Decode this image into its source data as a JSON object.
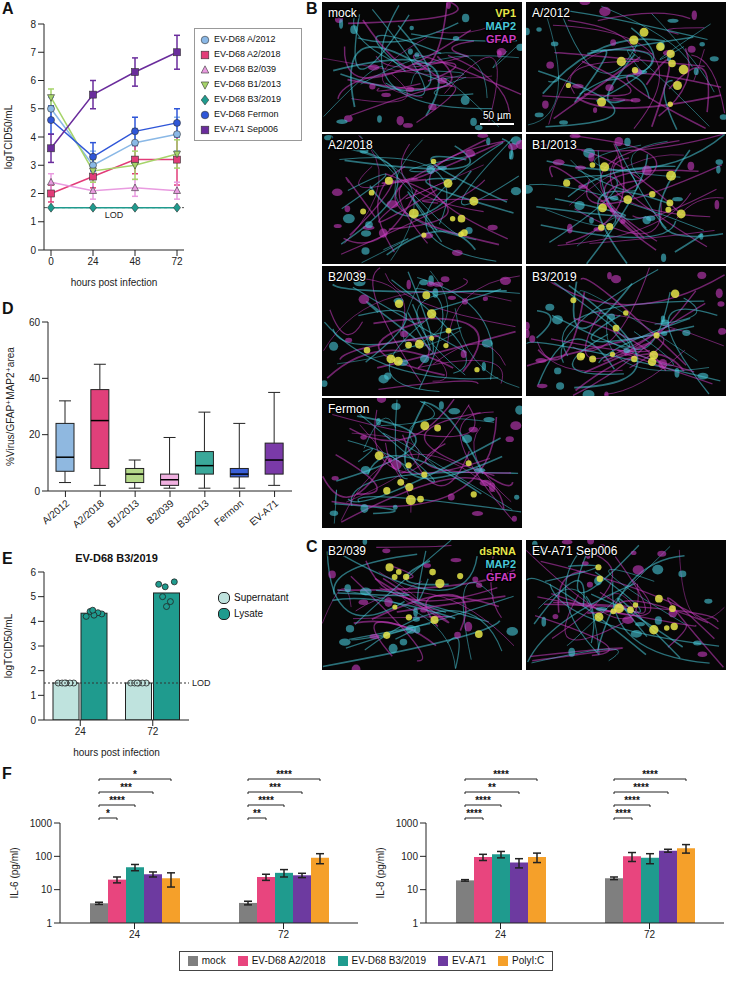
{
  "chart_data": [
    {
      "panel": "A",
      "type": "line",
      "x_label": "hours post infection",
      "y_label": "logTCID50/mL",
      "legend": "right",
      "x": [
        0,
        24,
        48,
        72
      ],
      "xlim": [
        -4,
        76
      ],
      "xticks": [
        0,
        24,
        48,
        72
      ],
      "ylim": [
        0,
        8
      ],
      "yticks": [
        0,
        1,
        2,
        3,
        4,
        5,
        6,
        7,
        8
      ],
      "annotations": [
        {
          "label": "LOD",
          "y": 1.5
        }
      ],
      "series": [
        {
          "name": "EV-D68 A/2012",
          "color": "#8ab8e6",
          "marker": "circle",
          "values": [
            5.0,
            3.0,
            3.8,
            4.1
          ],
          "errors": [
            0.4,
            0.5,
            0.5,
            0.6
          ]
        },
        {
          "name": "EV-D68 A2/2018",
          "color": "#e23c78",
          "marker": "square",
          "values": [
            2.0,
            2.6,
            3.2,
            3.2
          ],
          "errors": [
            0.3,
            0.4,
            0.5,
            0.9
          ]
        },
        {
          "name": "EV-D68 B2/039",
          "color": "#e99be0",
          "marker": "triangle",
          "values": [
            2.4,
            2.1,
            2.2,
            2.1
          ],
          "errors": [
            0.3,
            0.3,
            0.3,
            0.3
          ]
        },
        {
          "name": "EV-D68 B1/2013",
          "color": "#a6d46a",
          "marker": "triangle-down",
          "values": [
            5.4,
            2.8,
            3.0,
            3.4
          ],
          "errors": [
            0.3,
            0.4,
            0.5,
            0.5
          ]
        },
        {
          "name": "EV-D68 B3/2019",
          "color": "#1f9b8e",
          "marker": "diamond",
          "values": [
            1.5,
            1.5,
            1.5,
            1.5
          ],
          "errors": [
            0,
            0,
            0,
            0
          ]
        },
        {
          "name": "EV-D68 Fermon",
          "color": "#2f56d8",
          "marker": "circle",
          "values": [
            4.6,
            3.3,
            4.2,
            4.5
          ],
          "errors": [
            0.5,
            0.5,
            0.5,
            0.5
          ]
        },
        {
          "name": "EV-A71 Sep006",
          "color": "#6a2c9c",
          "marker": "square",
          "values": [
            3.6,
            5.5,
            6.3,
            7.0
          ],
          "errors": [
            0.5,
            0.5,
            0.5,
            0.6
          ]
        }
      ]
    },
    {
      "panel": "B",
      "type": "image",
      "channels": [
        {
          "name": "VP1",
          "color": "#e6e64a"
        },
        {
          "name": "MAP2",
          "color": "#48c8d8"
        },
        {
          "name": "GFAP",
          "color": "#c83cc0"
        }
      ],
      "scale_bar": "50 µm",
      "images": [
        "mock",
        "A/2012",
        "A2/2018",
        "B1/2013",
        "B2/039",
        "B3/2019",
        "Fermon"
      ]
    },
    {
      "panel": "C",
      "type": "image",
      "channels": [
        {
          "name": "dsRNA",
          "color": "#e6e64a"
        },
        {
          "name": "MAP2",
          "color": "#48c8d8"
        },
        {
          "name": "GFAP",
          "color": "#c83cc0"
        }
      ],
      "images": [
        "B2/039",
        "EV-A71 Sep006"
      ]
    },
    {
      "panel": "D",
      "type": "box",
      "y_label": "%Virus/GFAP⁺MAP2⁺area",
      "categories": [
        "A/2012",
        "A2/2018",
        "B1/2013",
        "B2/039",
        "B3/2013",
        "Fermon",
        "EV-A71"
      ],
      "colors": [
        "#8fb8e0",
        "#e0407a",
        "#b5d98a",
        "#f0b0e0",
        "#3aa89a",
        "#3a5fd6",
        "#7a3aa8"
      ],
      "ylim": [
        0,
        60
      ],
      "yticks": [
        0,
        20,
        40,
        60
      ],
      "boxes": [
        {
          "min": 3,
          "q1": 7,
          "median": 12,
          "q3": 24,
          "max": 32
        },
        {
          "min": 2,
          "q1": 8,
          "median": 25,
          "q3": 36,
          "max": 45
        },
        {
          "min": 1,
          "q1": 3,
          "median": 6,
          "q3": 8,
          "max": 11
        },
        {
          "min": 1,
          "q1": 2,
          "median": 4,
          "q3": 6,
          "max": 19
        },
        {
          "min": 1,
          "q1": 6,
          "median": 9,
          "q3": 14,
          "max": 28
        },
        {
          "min": 1,
          "q1": 5,
          "median": 6,
          "q3": 8,
          "max": 24
        },
        {
          "min": 2,
          "q1": 6,
          "median": 11,
          "q3": 17,
          "max": 35
        }
      ]
    },
    {
      "panel": "E",
      "type": "bar",
      "title": "EV-D68 B3/2019",
      "x_label": "hours post infection",
      "y_label": "logTCID50/mL",
      "legend": "right",
      "categories": [
        "24",
        "72"
      ],
      "ylim": [
        0,
        6
      ],
      "yticks": [
        0,
        1,
        2,
        3,
        4,
        5,
        6
      ],
      "annotations": [
        {
          "label": "LOD",
          "y": 1.5
        }
      ],
      "series": [
        {
          "name": "Supernatant",
          "color": "#bfe3de",
          "values": [
            1.5,
            1.5
          ],
          "points": [
            [
              1.5,
              1.5,
              1.5,
              1.5,
              1.5,
              1.5
            ],
            [
              1.5,
              1.5,
              1.5,
              1.5,
              1.5,
              1.5
            ]
          ]
        },
        {
          "name": "Lysate",
          "color": "#1f9b8e",
          "values": [
            4.33,
            5.15
          ],
          "points": [
            [
              4.2,
              4.3,
              4.4,
              4.35,
              4.25,
              4.45
            ],
            [
              5.5,
              5.6,
              5.0,
              4.8,
              4.6,
              5.4
            ]
          ]
        }
      ]
    },
    {
      "panel": "F",
      "type": "bar",
      "log": "y",
      "legend": "bottom",
      "categories": [
        "24",
        "72"
      ],
      "ylim": [
        1,
        1000
      ],
      "yticks": [
        1,
        10,
        100,
        1000
      ],
      "series": [
        {
          "name": "mock",
          "color": "#7f7f7f"
        },
        {
          "name": "EV-D68 A2/2018",
          "color": "#e8457e"
        },
        {
          "name": "EV-D68 B3/2019",
          "color": "#1f9b8e"
        },
        {
          "name": "EV-A71",
          "color": "#6d3aa0"
        },
        {
          "name": "PolyI:C",
          "color": "#f5a02a"
        }
      ],
      "subplots": [
        {
          "y_label": "IL-6 (pg/ml)",
          "values": [
            [
              3.9,
              4.0
            ],
            [
              20,
              24
            ],
            [
              47,
              32
            ],
            [
              29,
              27
            ],
            [
              22,
              90
            ]
          ],
          "errors": [
            [
              0.3,
              0.5
            ],
            [
              4,
              5
            ],
            [
              10,
              8
            ],
            [
              5,
              4
            ],
            [
              10,
              30
            ]
          ],
          "significance": [
            [
              "*",
              "****",
              "***",
              "*"
            ],
            [
              "**",
              "****",
              "***",
              "****"
            ]
          ]
        },
        {
          "y_label": "IL-8 (pg/ml)",
          "values": [
            [
              19,
              22
            ],
            [
              95,
              100
            ],
            [
              115,
              90
            ],
            [
              65,
              148
            ],
            [
              95,
              175
            ]
          ],
          "errors": [
            [
              1,
              2
            ],
            [
              20,
              30
            ],
            [
              25,
              30
            ],
            [
              20,
              15
            ],
            [
              30,
              50
            ]
          ],
          "significance": [
            [
              "****",
              "****",
              "**",
              "****"
            ],
            [
              "****",
              "****",
              "****",
              "****"
            ]
          ]
        }
      ]
    }
  ]
}
